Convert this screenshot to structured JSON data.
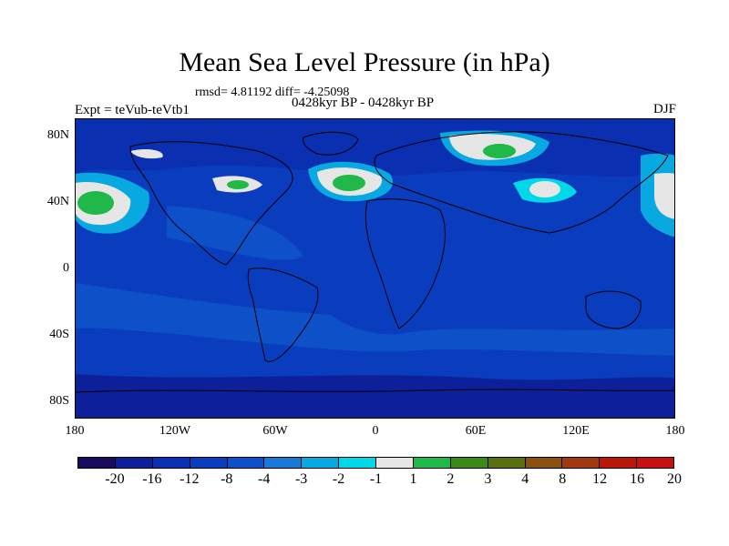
{
  "title": "Mean Sea Level Pressure (in hPa)",
  "stats_text": "rmsd= 4.81192 diff= -4.25098",
  "left_label": "Expt = teVub-teVtb1",
  "center_label": "0428kyr BP - 0428kyr BP",
  "right_label": "DJF",
  "y_ticks": [
    "80N",
    "40N",
    "0",
    "40S",
    "80S"
  ],
  "x_ticks": [
    "180",
    "120W",
    "60W",
    "0",
    "60E",
    "120E",
    "180"
  ],
  "colorbar": {
    "colors": [
      "#1a0a5e",
      "#0d1f99",
      "#0a2fb0",
      "#0a3cbe",
      "#0d50c8",
      "#1a78d8",
      "#08a8e0",
      "#00d8e8",
      "#e6e6e6",
      "#20b848",
      "#3a8a1a",
      "#5a7010",
      "#8a5010",
      "#a03810",
      "#b81808",
      "#c81010"
    ],
    "labels": [
      "-20",
      "-16",
      "-12",
      "-8",
      "-4",
      "-3",
      "-2",
      "-1",
      "1",
      "2",
      "3",
      "4",
      "8",
      "12",
      "16",
      "20"
    ]
  }
}
